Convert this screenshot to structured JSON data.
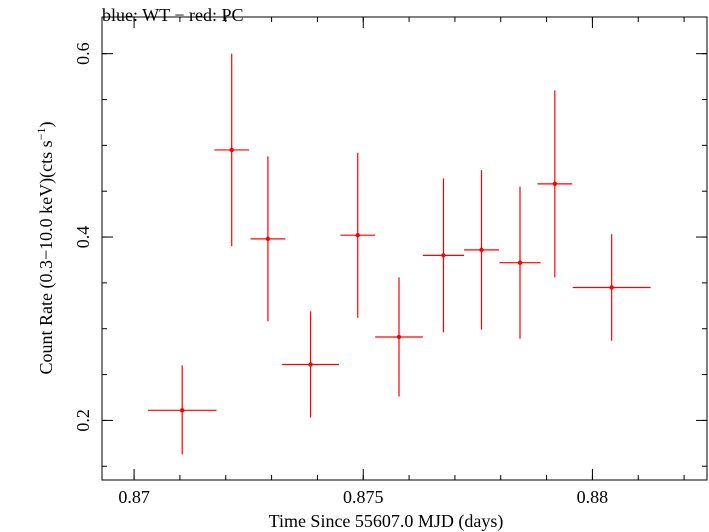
{
  "chart_data": {
    "type": "scatter",
    "title": "blue: WT − red: PC",
    "xlabel": "Time Since 55607.0 MJD (days)",
    "ylabel_main": "Count Rate (0.3−10.0 keV)(cts s",
    "ylabel_sup": "−1",
    "ylabel_close": ")",
    "xlim": [
      0.8693,
      0.8825
    ],
    "ylim": [
      0.135,
      0.64
    ],
    "x_ticks": [
      {
        "value": 0.87,
        "label": "0.87"
      },
      {
        "value": 0.875,
        "label": "0.875"
      },
      {
        "value": 0.88,
        "label": "0.88"
      }
    ],
    "x_minor_step": 0.001,
    "y_ticks": [
      {
        "value": 0.2,
        "label": "0.2"
      },
      {
        "value": 0.4,
        "label": "0.4"
      },
      {
        "value": 0.6,
        "label": "0.6"
      }
    ],
    "y_minor_step": 0.05,
    "series": [
      {
        "color": "#ff0000",
        "points": [
          {
            "x": 0.87105,
            "xerr": 0.00075,
            "y": 0.211,
            "yerr_low": 0.048,
            "yerr_high": 0.049
          },
          {
            "x": 0.87213,
            "xerr": 0.00038,
            "y": 0.495,
            "yerr_low": 0.105,
            "yerr_high": 0.105
          },
          {
            "x": 0.87292,
            "xerr": 0.00038,
            "y": 0.398,
            "yerr_low": 0.09,
            "yerr_high": 0.09
          },
          {
            "x": 0.87385,
            "xerr": 0.00062,
            "y": 0.261,
            "yerr_low": 0.058,
            "yerr_high": 0.058
          },
          {
            "x": 0.87488,
            "xerr": 0.00038,
            "y": 0.402,
            "yerr_low": 0.09,
            "yerr_high": 0.09
          },
          {
            "x": 0.87578,
            "xerr": 0.00052,
            "y": 0.291,
            "yerr_low": 0.065,
            "yerr_high": 0.065
          },
          {
            "x": 0.87675,
            "xerr": 0.00045,
            "y": 0.38,
            "yerr_low": 0.084,
            "yerr_high": 0.084
          },
          {
            "x": 0.87758,
            "xerr": 0.00038,
            "y": 0.386,
            "yerr_low": 0.087,
            "yerr_high": 0.087
          },
          {
            "x": 0.87842,
            "xerr": 0.00045,
            "y": 0.372,
            "yerr_low": 0.083,
            "yerr_high": 0.083
          },
          {
            "x": 0.87918,
            "xerr": 0.00038,
            "y": 0.458,
            "yerr_low": 0.102,
            "yerr_high": 0.102
          },
          {
            "x": 0.88042,
            "xerr": 0.00085,
            "y": 0.345,
            "yerr_low": 0.058,
            "yerr_high": 0.058
          }
        ]
      }
    ],
    "grid": false,
    "legend": "none"
  }
}
